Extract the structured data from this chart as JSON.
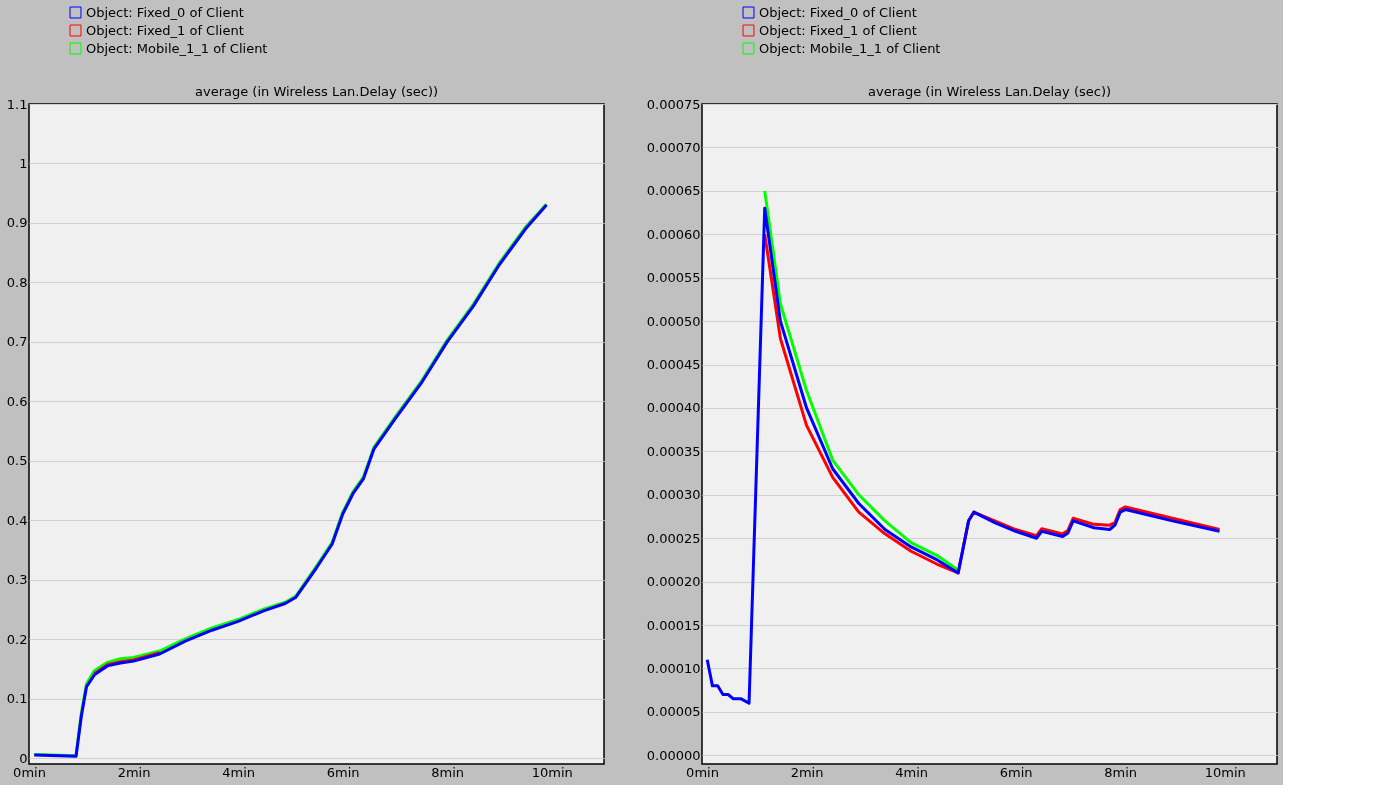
{
  "chart_data": [
    {
      "type": "line",
      "title": "average (in Wireless Lan.Delay (sec))",
      "legend": "top left",
      "grid": "y",
      "xlim": [
        0,
        11
      ],
      "xticks": [
        {
          "value": 0,
          "label": "0min"
        },
        {
          "value": 2,
          "label": "2min"
        },
        {
          "value": 4,
          "label": "4min"
        },
        {
          "value": 6,
          "label": "6min"
        },
        {
          "value": 8,
          "label": "8min"
        },
        {
          "value": 10,
          "label": "10min"
        }
      ],
      "ylim": [
        -0.01,
        1.1
      ],
      "yticks": [
        0,
        0.1,
        0.2,
        0.3,
        0.4,
        0.5,
        0.6,
        0.7,
        0.8,
        0.9,
        1,
        1.1
      ],
      "series": [
        {
          "name": "Object: Fixed_0 of Client",
          "color": "#0000ff",
          "x": [
            0.1,
            0.9,
            1.0,
            1.1,
            1.25,
            1.5,
            1.75,
            2,
            2.5,
            3,
            3.5,
            4,
            4.5,
            4.9,
            5.1,
            5.5,
            5.8,
            6,
            6.2,
            6.4,
            6.6,
            7,
            7.5,
            8,
            8.5,
            9,
            9.5,
            9.9
          ],
          "values": [
            0.005,
            0.003,
            0.07,
            0.12,
            0.14,
            0.155,
            0.16,
            0.163,
            0.175,
            0.197,
            0.215,
            0.23,
            0.248,
            0.26,
            0.27,
            0.32,
            0.36,
            0.41,
            0.445,
            0.47,
            0.52,
            0.57,
            0.63,
            0.7,
            0.76,
            0.83,
            0.89,
            0.93
          ]
        },
        {
          "name": "Object: Fixed_1 of Client",
          "color": "#ff0000",
          "x": [
            1.25,
            1.5,
            1.75,
            2,
            2.5
          ],
          "values": [
            0.142,
            0.157,
            0.162,
            0.165,
            0.177
          ]
        },
        {
          "name": "Object: Mobile_1_1 of Client",
          "color": "#00ff00",
          "x": [
            0.1,
            0.9,
            1.0,
            1.1,
            1.25,
            1.5,
            1.75,
            2,
            2.5,
            3,
            3.5,
            4,
            4.5,
            4.9,
            5.1,
            5.5,
            5.8,
            6,
            6.2,
            6.4,
            6.6,
            7,
            7.5,
            8,
            8.5,
            9,
            9.5,
            9.9
          ],
          "values": [
            0.006,
            0.004,
            0.075,
            0.125,
            0.147,
            0.161,
            0.167,
            0.169,
            0.18,
            0.201,
            0.219,
            0.233,
            0.251,
            0.262,
            0.272,
            0.323,
            0.363,
            0.413,
            0.448,
            0.473,
            0.523,
            0.573,
            0.633,
            0.703,
            0.763,
            0.833,
            0.893,
            0.932
          ]
        }
      ]
    },
    {
      "type": "line",
      "title": "average (in Wireless Lan.Delay (sec))",
      "legend": "top left",
      "grid": "y",
      "xlim": [
        0,
        11
      ],
      "xticks": [
        {
          "value": 0,
          "label": "0min"
        },
        {
          "value": 2,
          "label": "2min"
        },
        {
          "value": 4,
          "label": "4min"
        },
        {
          "value": 6,
          "label": "6min"
        },
        {
          "value": 8,
          "label": "8min"
        },
        {
          "value": 10,
          "label": "10min"
        }
      ],
      "ylim": [
        -1e-05,
        0.00075
      ],
      "yticks": [
        {
          "value": 0,
          "label": "0.00000"
        },
        {
          "value": 5e-05,
          "label": "0.00005"
        },
        {
          "value": 0.0001,
          "label": "0.00010"
        },
        {
          "value": 0.00015,
          "label": "0.00015"
        },
        {
          "value": 0.0002,
          "label": "0.00020"
        },
        {
          "value": 0.00025,
          "label": "0.00025"
        },
        {
          "value": 0.0003,
          "label": "0.00030"
        },
        {
          "value": 0.00035,
          "label": "0.00035"
        },
        {
          "value": 0.0004,
          "label": "0.00040"
        },
        {
          "value": 0.00045,
          "label": "0.00045"
        },
        {
          "value": 0.0005,
          "label": "0.00050"
        },
        {
          "value": 0.00055,
          "label": "0.00055"
        },
        {
          "value": 0.0006,
          "label": "0.00060"
        },
        {
          "value": 0.00065,
          "label": "0.00065"
        },
        {
          "value": 0.0007,
          "label": "0.00070"
        },
        {
          "value": 0.00075,
          "label": "0.00075"
        }
      ],
      "series": [
        {
          "name": "Object: Fixed_0 of Client",
          "color": "#0000ff",
          "x": [
            0.1,
            0.2,
            0.3,
            0.4,
            0.5,
            0.6,
            0.75,
            0.9,
            1.2,
            1.5,
            2,
            2.5,
            3,
            3.5,
            4,
            4.5,
            4.9,
            5.1,
            5.2,
            5.6,
            6,
            6.4,
            6.5,
            6.9,
            7.0,
            7.1,
            7.5,
            7.8,
            7.9,
            8.0,
            8.1,
            9,
            9.9
          ],
          "values": [
            0.00011,
            8e-05,
            8e-05,
            7e-05,
            7e-05,
            6.5e-05,
            6.5e-05,
            6e-05,
            0.00063,
            0.0005,
            0.0004,
            0.00033,
            0.00029,
            0.00026,
            0.00024,
            0.000225,
            0.00021,
            0.00027,
            0.00028,
            0.000268,
            0.000258,
            0.00025,
            0.000258,
            0.000252,
            0.000256,
            0.00027,
            0.000262,
            0.00026,
            0.000265,
            0.00028,
            0.000283,
            0.00027,
            0.000258
          ]
        },
        {
          "name": "Object: Fixed_1 of Client",
          "color": "#ff0000",
          "x": [
            1.2,
            1.5,
            2,
            2.5,
            3,
            3.5,
            4,
            4.5,
            4.9,
            5.1,
            5.2,
            5.6,
            6,
            6.4,
            6.5,
            6.9,
            7.0,
            7.1,
            7.5,
            7.8,
            7.9,
            8.0,
            8.1,
            9,
            9.9
          ],
          "values": [
            0.0006,
            0.00048,
            0.00038,
            0.00032,
            0.00028,
            0.000255,
            0.000235,
            0.00022,
            0.00021,
            0.00027,
            0.00028,
            0.00027,
            0.00026,
            0.000253,
            0.000261,
            0.000255,
            0.000259,
            0.000273,
            0.000266,
            0.000265,
            0.000268,
            0.000283,
            0.000286,
            0.000273,
            0.00026
          ]
        },
        {
          "name": "Object: Mobile_1_1 of Client",
          "color": "#00ff00",
          "x": [
            1.2,
            1.5,
            2,
            2.5,
            3,
            3.5,
            4,
            4.5,
            4.9
          ],
          "values": [
            0.00065,
            0.00052,
            0.00042,
            0.00034,
            0.0003,
            0.00027,
            0.000245,
            0.00023,
            0.000213
          ]
        }
      ]
    }
  ]
}
